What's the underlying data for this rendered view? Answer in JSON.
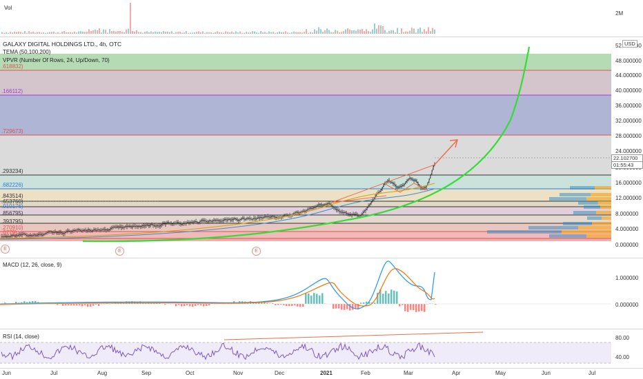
{
  "volume_pane": {
    "label": "Vol",
    "axis_label": "2M"
  },
  "main_pane": {
    "title": "GALAXY DIGITAL HOLDINGS LTD., 4h, OTC",
    "indicator_1": "TEMA (50,100,200)",
    "indicator_2": "VPVR (Number Of Rows, 24, Up/Down, 70)",
    "currency_badge": "USD",
    "axis_ticks": [
      "52.000000",
      "48.000000",
      "44.000000",
      "40.000000",
      "36.000000",
      "32.000000",
      "28.000000",
      "24.000000",
      "20.000000",
      "16.000000",
      "12.000000",
      "8.000000",
      "4.000000",
      "0.000000"
    ],
    "price_label": "22.102700",
    "countdown_label": "01:55:43",
    "fib_labels": [
      {
        "text": ".618832)",
        "color": "#e05050"
      },
      {
        "text": ".166112)",
        "color": "#9b3fcf"
      },
      {
        "text": ".729673)",
        "color": "#e05050"
      },
      {
        "text": ".293234)",
        "color": "#333333"
      },
      {
        "text": ".682226)",
        "color": "#2b7bd6"
      },
      {
        "text": ".843514)",
        "color": "#333333"
      },
      {
        "text": ".653760)",
        "color": "#333333"
      },
      {
        "text": ".910176)",
        "color": "#2b7bd6"
      },
      {
        "text": ".856795)",
        "color": "#333333"
      },
      {
        "text": ".393795)",
        "color": "#333333"
      },
      {
        "text": ".270910)",
        "color": "#e05050"
      },
      {
        "text": ".0779)",
        "color": "#e05050"
      }
    ],
    "event_marker": "E"
  },
  "macd_pane": {
    "label": "MACD (12, 26, close, 9)",
    "axis_ticks": [
      "1.000000",
      "0.000000"
    ]
  },
  "rsi_pane": {
    "label": "RSI (14, close)",
    "axis_ticks": [
      "80.00",
      "40.00"
    ]
  },
  "time_axis": [
    {
      "label": "Jun",
      "bold": false
    },
    {
      "label": "Jul",
      "bold": false
    },
    {
      "label": "Aug",
      "bold": false
    },
    {
      "label": "Sep",
      "bold": false
    },
    {
      "label": "Oct",
      "bold": false
    },
    {
      "label": "Nov",
      "bold": false
    },
    {
      "label": "Dec",
      "bold": false
    },
    {
      "label": "2021",
      "bold": true
    },
    {
      "label": "Feb",
      "bold": false
    },
    {
      "label": "Mar",
      "bold": false
    },
    {
      "label": "Apr",
      "bold": false
    },
    {
      "label": "May",
      "bold": false
    },
    {
      "label": "Jun",
      "bold": false
    },
    {
      "label": "Jul",
      "bold": false
    }
  ],
  "colors": {
    "up": "#26a69a",
    "down": "#ef5350",
    "curve": "#33dd33",
    "macd": "#2196f3",
    "signal": "#ff6d00",
    "rsi": "#7e57c2",
    "trend": "#ef6c4a"
  }
}
